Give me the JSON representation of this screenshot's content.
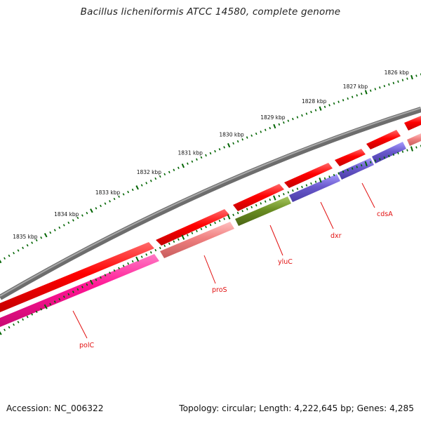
{
  "title": "Bacillus licheniformis ATCC 14580, complete genome",
  "footer": {
    "accession": "Accession: NC_006322",
    "summary": "Topology: circular; Length: 4,222,645 bp; Genes: 4,285"
  },
  "ticks": [
    {
      "label": "1826 kbp",
      "kbp": 1826
    },
    {
      "label": "1827 kbp",
      "kbp": 1827
    },
    {
      "label": "1828 kbp",
      "kbp": 1828
    },
    {
      "label": "1829 kbp",
      "kbp": 1829
    },
    {
      "label": "1830 kbp",
      "kbp": 1830
    },
    {
      "label": "1831 kbp",
      "kbp": 1831
    },
    {
      "label": "1832 kbp",
      "kbp": 1832
    },
    {
      "label": "1833 kbp",
      "kbp": 1833
    },
    {
      "label": "1834 kbp",
      "kbp": 1834
    },
    {
      "label": "1835 kbp",
      "kbp": 1835
    }
  ],
  "genes": [
    {
      "name": "polC",
      "color": "#ff1493"
    },
    {
      "name": "proS",
      "color": "#f08080"
    },
    {
      "name": "yluC",
      "color": "#6b8e23"
    },
    {
      "name": "dxr",
      "color": "#6a5acd"
    },
    {
      "name": "cdsA",
      "color": "#6a5acd"
    }
  ],
  "colors": {
    "backbone": "#808080",
    "cds_forward": "#ff0000",
    "ticks": "#006400",
    "gene_label": "#e21010"
  }
}
